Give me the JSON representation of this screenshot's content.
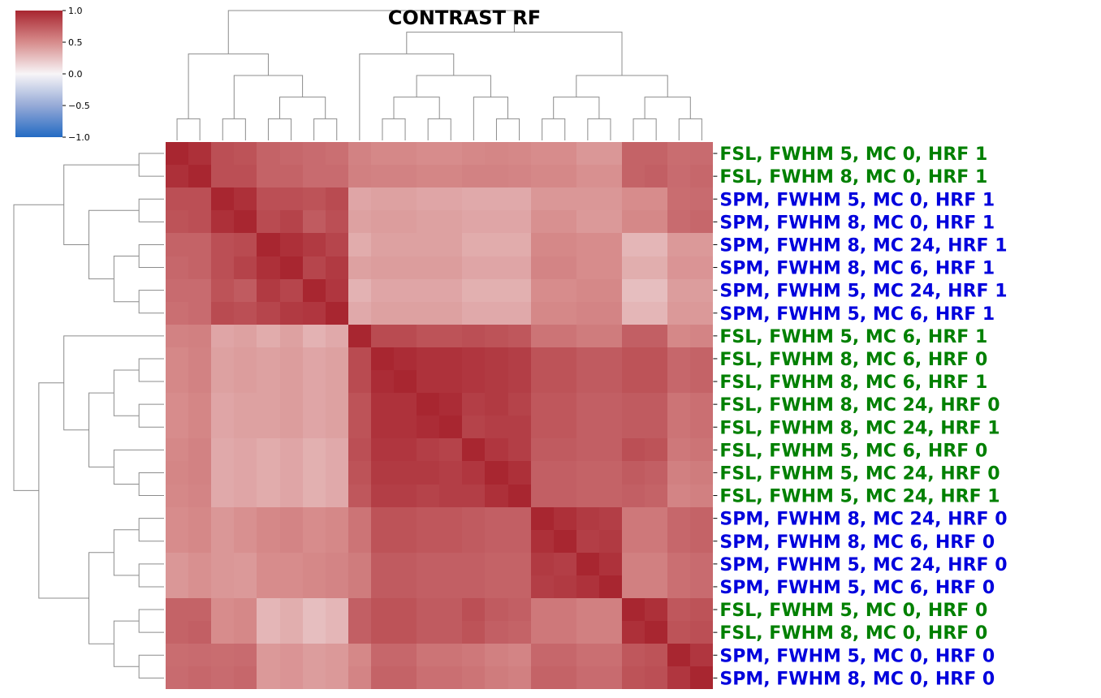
{
  "chart_data": {
    "type": "heatmap",
    "title": "CONTRAST RF",
    "colormap": "vlag",
    "vmin": -1.0,
    "vmax": 1.0,
    "colorbar_ticks": [
      "1.0",
      "0.5",
      "0.0",
      "−0.5",
      "−1.0"
    ],
    "colorbar_tick_values": [
      1.0,
      0.5,
      0.0,
      -0.5,
      -1.0
    ],
    "colorbar_placement": "top-left",
    "dendrograms": [
      "top",
      "left"
    ],
    "row_labels": [
      "FSL, FWHM 5, MC 0, HRF 1",
      "FSL, FWHM 8, MC 0, HRF 1",
      "SPM, FWHM 5, MC 0, HRF 1",
      "SPM, FWHM 8, MC 0, HRF 1",
      "SPM, FWHM 8, MC 24, HRF 1",
      "SPM, FWHM 8, MC 6, HRF 1",
      "SPM, FWHM 5, MC 24, HRF 1",
      "SPM, FWHM 5, MC 6, HRF 1",
      "FSL, FWHM 5, MC 6, HRF 1",
      "FSL, FWHM 8, MC 6, HRF 0",
      "FSL, FWHM 8, MC 6, HRF 1",
      "FSL, FWHM 8, MC 24, HRF 0",
      "FSL, FWHM 8, MC 24, HRF 1",
      "FSL, FWHM 5, MC 6, HRF 0",
      "FSL, FWHM 5, MC 24, HRF 0",
      "FSL, FWHM 5, MC 24, HRF 1",
      "SPM, FWHM 8, MC 24, HRF 0",
      "SPM, FWHM 8, MC 6, HRF 0",
      "SPM, FWHM 5, MC 24, HRF 0",
      "SPM, FWHM 5, MC 6, HRF 0",
      "FSL, FWHM 5, MC 0, HRF 0",
      "FSL, FWHM 8, MC 0, HRF 0",
      "SPM, FWHM 5, MC 0, HRF 0",
      "SPM, FWHM 8, MC 0, HRF 0"
    ],
    "label_colors": {
      "FSL": "#008000",
      "SPM": "#0000dd"
    },
    "values": [
      [
        1.0,
        0.95,
        0.8,
        0.78,
        0.7,
        0.68,
        0.66,
        0.64,
        0.55,
        0.52,
        0.52,
        0.5,
        0.5,
        0.52,
        0.53,
        0.52,
        0.5,
        0.5,
        0.45,
        0.45,
        0.7,
        0.7,
        0.65,
        0.66
      ],
      [
        0.95,
        1.0,
        0.8,
        0.8,
        0.7,
        0.7,
        0.66,
        0.66,
        0.56,
        0.55,
        0.55,
        0.53,
        0.53,
        0.55,
        0.55,
        0.54,
        0.52,
        0.52,
        0.48,
        0.48,
        0.7,
        0.72,
        0.66,
        0.68
      ],
      [
        0.8,
        0.8,
        1.0,
        0.95,
        0.8,
        0.8,
        0.78,
        0.82,
        0.38,
        0.4,
        0.4,
        0.38,
        0.38,
        0.36,
        0.36,
        0.36,
        0.45,
        0.45,
        0.45,
        0.45,
        0.5,
        0.5,
        0.65,
        0.66
      ],
      [
        0.78,
        0.8,
        0.95,
        1.0,
        0.82,
        0.86,
        0.74,
        0.8,
        0.4,
        0.42,
        0.42,
        0.4,
        0.4,
        0.38,
        0.38,
        0.38,
        0.48,
        0.48,
        0.44,
        0.44,
        0.52,
        0.52,
        0.66,
        0.68
      ],
      [
        0.7,
        0.7,
        0.8,
        0.82,
        1.0,
        0.95,
        0.9,
        0.85,
        0.35,
        0.4,
        0.4,
        0.4,
        0.4,
        0.35,
        0.35,
        0.35,
        0.52,
        0.52,
        0.5,
        0.5,
        0.3,
        0.3,
        0.44,
        0.44
      ],
      [
        0.68,
        0.7,
        0.8,
        0.86,
        0.95,
        1.0,
        0.85,
        0.9,
        0.4,
        0.42,
        0.42,
        0.42,
        0.42,
        0.38,
        0.38,
        0.38,
        0.54,
        0.54,
        0.5,
        0.5,
        0.34,
        0.34,
        0.46,
        0.46
      ],
      [
        0.66,
        0.66,
        0.78,
        0.74,
        0.9,
        0.85,
        1.0,
        0.92,
        0.32,
        0.38,
        0.38,
        0.38,
        0.38,
        0.33,
        0.33,
        0.33,
        0.5,
        0.5,
        0.52,
        0.52,
        0.26,
        0.26,
        0.42,
        0.42
      ],
      [
        0.64,
        0.66,
        0.82,
        0.8,
        0.85,
        0.9,
        0.92,
        1.0,
        0.36,
        0.4,
        0.4,
        0.4,
        0.4,
        0.36,
        0.36,
        0.36,
        0.52,
        0.52,
        0.54,
        0.54,
        0.3,
        0.3,
        0.44,
        0.44
      ],
      [
        0.55,
        0.56,
        0.38,
        0.4,
        0.35,
        0.4,
        0.32,
        0.36,
        1.0,
        0.82,
        0.82,
        0.78,
        0.78,
        0.8,
        0.78,
        0.76,
        0.62,
        0.62,
        0.58,
        0.58,
        0.72,
        0.72,
        0.52,
        0.54
      ],
      [
        0.52,
        0.55,
        0.4,
        0.42,
        0.4,
        0.42,
        0.38,
        0.4,
        0.82,
        1.0,
        0.97,
        0.94,
        0.94,
        0.92,
        0.9,
        0.88,
        0.78,
        0.78,
        0.74,
        0.74,
        0.78,
        0.78,
        0.68,
        0.7
      ],
      [
        0.52,
        0.55,
        0.4,
        0.42,
        0.4,
        0.42,
        0.38,
        0.4,
        0.82,
        0.97,
        1.0,
        0.94,
        0.94,
        0.92,
        0.9,
        0.88,
        0.78,
        0.78,
        0.74,
        0.74,
        0.78,
        0.78,
        0.68,
        0.7
      ],
      [
        0.5,
        0.53,
        0.38,
        0.4,
        0.4,
        0.42,
        0.38,
        0.4,
        0.78,
        0.94,
        0.94,
        1.0,
        0.97,
        0.88,
        0.9,
        0.86,
        0.76,
        0.76,
        0.72,
        0.72,
        0.74,
        0.74,
        0.62,
        0.64
      ],
      [
        0.5,
        0.53,
        0.38,
        0.4,
        0.4,
        0.42,
        0.38,
        0.4,
        0.78,
        0.94,
        0.94,
        0.97,
        1.0,
        0.86,
        0.88,
        0.88,
        0.76,
        0.76,
        0.72,
        0.72,
        0.74,
        0.74,
        0.62,
        0.64
      ],
      [
        0.52,
        0.55,
        0.36,
        0.38,
        0.35,
        0.38,
        0.33,
        0.36,
        0.8,
        0.92,
        0.92,
        0.88,
        0.86,
        1.0,
        0.92,
        0.88,
        0.74,
        0.74,
        0.72,
        0.72,
        0.8,
        0.78,
        0.6,
        0.62
      ],
      [
        0.53,
        0.55,
        0.36,
        0.38,
        0.35,
        0.38,
        0.33,
        0.36,
        0.78,
        0.9,
        0.9,
        0.9,
        0.88,
        0.92,
        1.0,
        0.95,
        0.72,
        0.72,
        0.7,
        0.7,
        0.74,
        0.72,
        0.56,
        0.58
      ],
      [
        0.52,
        0.54,
        0.36,
        0.38,
        0.35,
        0.38,
        0.33,
        0.36,
        0.76,
        0.88,
        0.88,
        0.86,
        0.88,
        0.88,
        0.95,
        1.0,
        0.72,
        0.72,
        0.7,
        0.7,
        0.72,
        0.7,
        0.54,
        0.56
      ],
      [
        0.5,
        0.52,
        0.45,
        0.48,
        0.52,
        0.54,
        0.5,
        0.52,
        0.62,
        0.78,
        0.78,
        0.76,
        0.76,
        0.74,
        0.72,
        0.72,
        1.0,
        0.95,
        0.9,
        0.88,
        0.6,
        0.6,
        0.68,
        0.7
      ],
      [
        0.5,
        0.52,
        0.45,
        0.48,
        0.52,
        0.54,
        0.5,
        0.52,
        0.62,
        0.78,
        0.78,
        0.76,
        0.76,
        0.74,
        0.72,
        0.72,
        0.95,
        1.0,
        0.88,
        0.9,
        0.6,
        0.6,
        0.68,
        0.7
      ],
      [
        0.45,
        0.48,
        0.45,
        0.44,
        0.5,
        0.5,
        0.52,
        0.54,
        0.58,
        0.74,
        0.74,
        0.72,
        0.72,
        0.72,
        0.7,
        0.7,
        0.9,
        0.88,
        1.0,
        0.94,
        0.56,
        0.56,
        0.64,
        0.66
      ],
      [
        0.45,
        0.48,
        0.45,
        0.44,
        0.5,
        0.5,
        0.52,
        0.54,
        0.58,
        0.74,
        0.74,
        0.72,
        0.72,
        0.72,
        0.7,
        0.7,
        0.88,
        0.9,
        0.94,
        1.0,
        0.56,
        0.56,
        0.64,
        0.66
      ],
      [
        0.7,
        0.7,
        0.5,
        0.52,
        0.3,
        0.34,
        0.26,
        0.3,
        0.72,
        0.78,
        0.78,
        0.74,
        0.74,
        0.8,
        0.74,
        0.72,
        0.6,
        0.6,
        0.56,
        0.56,
        1.0,
        0.95,
        0.76,
        0.78
      ],
      [
        0.7,
        0.72,
        0.5,
        0.52,
        0.3,
        0.34,
        0.26,
        0.3,
        0.72,
        0.78,
        0.78,
        0.74,
        0.74,
        0.78,
        0.72,
        0.7,
        0.6,
        0.6,
        0.56,
        0.56,
        0.95,
        1.0,
        0.78,
        0.8
      ],
      [
        0.65,
        0.66,
        0.65,
        0.66,
        0.44,
        0.46,
        0.42,
        0.44,
        0.52,
        0.68,
        0.68,
        0.62,
        0.62,
        0.6,
        0.56,
        0.54,
        0.68,
        0.68,
        0.64,
        0.64,
        0.76,
        0.78,
        1.0,
        0.92
      ],
      [
        0.66,
        0.68,
        0.66,
        0.68,
        0.44,
        0.46,
        0.42,
        0.44,
        0.54,
        0.7,
        0.7,
        0.64,
        0.64,
        0.62,
        0.58,
        0.56,
        0.7,
        0.7,
        0.66,
        0.66,
        0.78,
        0.8,
        0.92,
        1.0
      ]
    ],
    "row_dendrogram": [
      [
        0,
        1
      ],
      [
        2,
        3
      ],
      [
        4,
        5
      ],
      [
        6,
        7
      ],
      [
        26,
        27
      ],
      [
        25,
        28
      ],
      [
        24,
        29
      ],
      [
        9,
        10
      ],
      [
        11,
        12
      ],
      [
        31,
        32
      ],
      [
        14,
        15
      ],
      [
        13,
        34
      ],
      [
        33,
        35
      ],
      [
        8,
        36
      ],
      [
        16,
        17
      ],
      [
        18,
        19
      ],
      [
        38,
        39
      ],
      [
        20,
        21
      ],
      [
        22,
        23
      ],
      [
        41,
        42
      ],
      [
        40,
        43
      ],
      [
        37,
        44
      ],
      [
        30,
        45
      ]
    ]
  }
}
